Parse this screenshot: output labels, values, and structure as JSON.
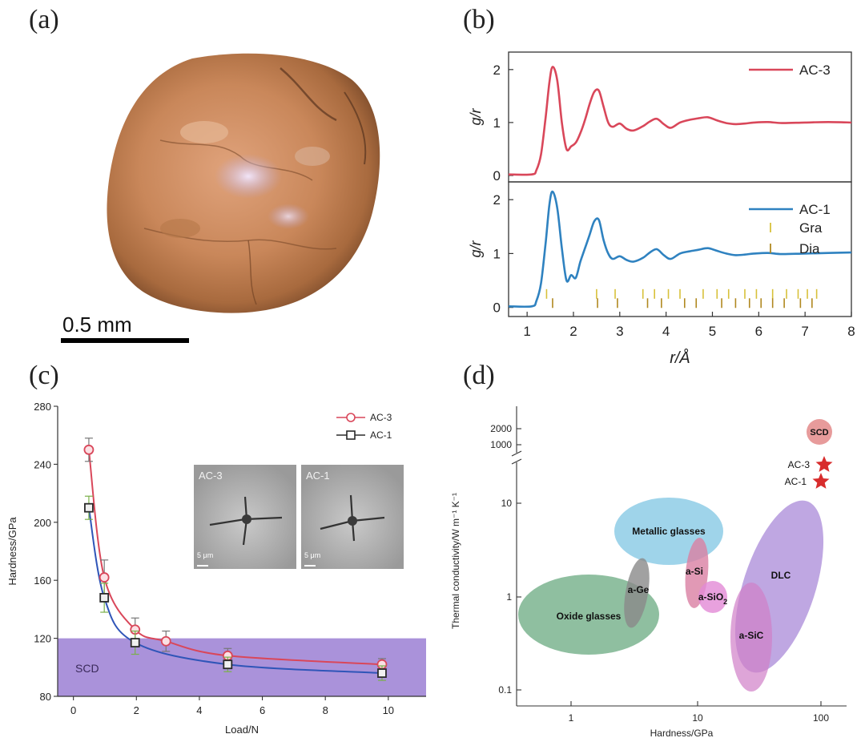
{
  "panels": {
    "a": {
      "label": "(a)",
      "scale_bar": "0.5 mm"
    },
    "b": {
      "label": "(b)"
    },
    "c": {
      "label": "(c)",
      "inset": {
        "left_label": "AC-3",
        "right_label": "AC-1",
        "scale_label": "5 μm"
      }
    },
    "d": {
      "label": "(d)"
    }
  },
  "chart_data": [
    {
      "panel": "b-top",
      "type": "line",
      "ylabel": "g/r",
      "ylim": [
        0,
        2.3
      ],
      "yticks": [
        "0",
        "1",
        "2"
      ],
      "xlim": [
        0.6,
        8
      ],
      "series": [
        {
          "name": "AC-3",
          "color": "#d9475a",
          "x": [
            0.6,
            1.1,
            1.2,
            1.3,
            1.4,
            1.48,
            1.55,
            1.65,
            1.75,
            1.85,
            1.95,
            2.05,
            2.15,
            2.25,
            2.35,
            2.45,
            2.55,
            2.65,
            2.75,
            2.85,
            3.0,
            3.15,
            3.3,
            3.5,
            3.65,
            3.8,
            3.95,
            4.1,
            4.3,
            4.5,
            4.7,
            4.9,
            5.1,
            5.3,
            5.5,
            5.7,
            5.9,
            6.2,
            6.5,
            7.0,
            7.5,
            8.0
          ],
          "y": [
            0.02,
            0.02,
            0.1,
            0.4,
            1.1,
            1.75,
            2.05,
            1.8,
            1.0,
            0.5,
            0.55,
            0.62,
            0.8,
            1.05,
            1.35,
            1.58,
            1.6,
            1.3,
            1.0,
            0.92,
            0.98,
            0.88,
            0.85,
            0.93,
            1.02,
            1.07,
            0.97,
            0.9,
            1.0,
            1.05,
            1.08,
            1.1,
            1.04,
            0.99,
            0.97,
            0.98,
            1.0,
            1.01,
            0.99,
            1.0,
            1.01,
            1.0
          ]
        }
      ]
    },
    {
      "panel": "b-bottom",
      "type": "line",
      "xlabel": "r/Å",
      "ylabel": "g/r",
      "ylim": [
        -0.05,
        2.3
      ],
      "yticks": [
        "0",
        "1",
        "2"
      ],
      "xlim": [
        0.6,
        8
      ],
      "xticks": [
        "1",
        "2",
        "3",
        "4",
        "5",
        "6",
        "7",
        "8"
      ],
      "series": [
        {
          "name": "AC-1",
          "color": "#2f82c0",
          "x": [
            0.6,
            1.1,
            1.2,
            1.3,
            1.4,
            1.48,
            1.55,
            1.65,
            1.75,
            1.85,
            1.95,
            2.05,
            2.15,
            2.25,
            2.35,
            2.45,
            2.55,
            2.65,
            2.75,
            2.85,
            3.0,
            3.15,
            3.3,
            3.5,
            3.65,
            3.8,
            3.95,
            4.1,
            4.3,
            4.5,
            4.7,
            4.9,
            5.1,
            5.3,
            5.5,
            5.7,
            5.9,
            6.2,
            6.5,
            7.0,
            7.5,
            8.0
          ],
          "y": [
            0.02,
            0.02,
            0.12,
            0.45,
            1.2,
            1.9,
            2.15,
            1.85,
            1.1,
            0.5,
            0.6,
            0.55,
            0.85,
            1.1,
            1.35,
            1.6,
            1.62,
            1.25,
            1.0,
            0.9,
            0.95,
            0.88,
            0.85,
            0.92,
            1.02,
            1.08,
            0.97,
            0.9,
            1.0,
            1.04,
            1.07,
            1.1,
            1.05,
            1.0,
            0.97,
            0.98,
            1.0,
            1.01,
            0.99,
            1.0,
            1.01,
            1.02
          ]
        }
      ],
      "markers": [
        {
          "name": "Gra",
          "color": "#d8c13a",
          "level": 0.25,
          "x": [
            1.42,
            2.5,
            2.9,
            3.5,
            3.75,
            4.05,
            4.3,
            4.8,
            5.1,
            5.35,
            5.7,
            5.95,
            6.3,
            6.6,
            6.85,
            7.05,
            7.25
          ]
        },
        {
          "name": "Dia",
          "color": "#b08820",
          "level": 0.08,
          "x": [
            1.55,
            2.52,
            2.95,
            3.6,
            3.9,
            4.4,
            4.65,
            5.2,
            5.5,
            5.8,
            6.05,
            6.3,
            6.55,
            6.9,
            7.15
          ]
        }
      ]
    },
    {
      "panel": "c",
      "type": "scatter",
      "xlabel": "Load/N",
      "ylabel": "Hardness/GPa",
      "xlim": [
        -0.5,
        11.2
      ],
      "ylim": [
        80,
        280
      ],
      "xticks": [
        "0",
        "2",
        "4",
        "6",
        "8",
        "10"
      ],
      "yticks": [
        "80",
        "120",
        "160",
        "200",
        "240",
        "280"
      ],
      "band": {
        "label": "SCD",
        "from": 80,
        "to": 120,
        "color": "#9b7fd4"
      },
      "series": [
        {
          "name": "AC-3",
          "color": "#d9475a",
          "marker": "circle",
          "x": [
            0.49,
            0.98,
            1.96,
            2.94,
            4.9,
            9.8
          ],
          "y": [
            250,
            162,
            126,
            118,
            108,
            102
          ],
          "err": [
            8,
            12,
            8,
            7,
            5,
            4
          ]
        },
        {
          "name": "AC-1",
          "color": "#2a2a2a",
          "marker": "square",
          "x": [
            0.49,
            0.98,
            1.96,
            4.9,
            9.8
          ],
          "y": [
            210,
            148,
            117,
            102,
            96
          ],
          "err": [
            8,
            10,
            8,
            5,
            5
          ]
        }
      ]
    },
    {
      "panel": "d",
      "type": "scatter",
      "xlabel": "Hardness/GPa",
      "ylabel": "Thermal conductivity/W m⁻¹ K⁻¹",
      "xscale": "log",
      "yscale": "log",
      "xticks": [
        "1",
        "10",
        "100"
      ],
      "yticks": [
        "0.1",
        "1",
        "10",
        "1000",
        "2000"
      ],
      "regions": [
        {
          "name": "Metallic glasses",
          "color": "#7fc5e3"
        },
        {
          "name": "Oxide glasses",
          "color": "#6aaa80"
        },
        {
          "name": "a-Ge",
          "color": "#8a8a8a"
        },
        {
          "name": "a-Si",
          "color": "#d97fa3"
        },
        {
          "name": "a-SiO",
          "sub": "2",
          "color": "#e28ad6"
        },
        {
          "name": "DLC",
          "color": "#a98ad8"
        },
        {
          "name": "a-SiC",
          "color": "#d07fc8"
        }
      ],
      "points": [
        {
          "name": "SCD",
          "color": "#e38a8a"
        },
        {
          "name": "AC-3",
          "color": "#d82c2c"
        },
        {
          "name": "AC-1",
          "color": "#d82c2c"
        }
      ]
    }
  ]
}
